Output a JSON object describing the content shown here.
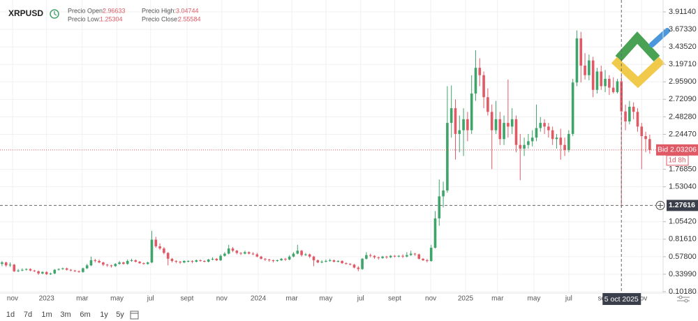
{
  "chart_data": {
    "type": "candlestick",
    "title": "XRPUSD",
    "ohlc_labels": {
      "open": "Precio Open:",
      "high": "Precio High:",
      "low": "Precio Low:",
      "close": "Precio Close:"
    },
    "ohlc": {
      "open": 2.96633,
      "high": 3.04744,
      "low": 1.25304,
      "close": 2.55584
    },
    "up_color": "#3fa46a",
    "down_color": "#e05a66",
    "grid": true,
    "xlim": [
      -0.5,
      163.3
    ],
    "xticks": [
      {
        "value": 2.6,
        "label": "nov"
      },
      {
        "value": 11,
        "label": "2023"
      },
      {
        "value": 19.8,
        "label": "mar"
      },
      {
        "value": 28.4,
        "label": "may"
      },
      {
        "value": 36.7,
        "label": "jul"
      },
      {
        "value": 45.7,
        "label": "sept"
      },
      {
        "value": 54.3,
        "label": "nov"
      },
      {
        "value": 63.3,
        "label": "2024"
      },
      {
        "value": 71.6,
        "label": "mar"
      },
      {
        "value": 80,
        "label": "may"
      },
      {
        "value": 88.6,
        "label": "jul"
      },
      {
        "value": 97,
        "label": "sept"
      },
      {
        "value": 105.9,
        "label": "nov"
      },
      {
        "value": 114.5,
        "label": "2025"
      },
      {
        "value": 122.4,
        "label": "mar"
      },
      {
        "value": 131.4,
        "label": "may"
      },
      {
        "value": 140,
        "label": "jul"
      },
      {
        "value": 148.8,
        "label": "sept"
      },
      {
        "value": 158,
        "label": "nov"
      }
    ],
    "ylim": [
      0.0828,
      4.0733
    ],
    "yticks": [
      {
        "value": 0.1018,
        "label": "0.10180"
      },
      {
        "value": 0.3399,
        "label": "0.33990"
      },
      {
        "value": 0.578,
        "label": "0.57800"
      },
      {
        "value": 0.8161,
        "label": "0.81610"
      },
      {
        "value": 1.0542,
        "label": "1.05420"
      },
      {
        "value": 1.5304,
        "label": "1.53040"
      },
      {
        "value": 1.7685,
        "label": "1.76850"
      },
      {
        "value": 2.2447,
        "label": "2.24470"
      },
      {
        "value": 2.4828,
        "label": "2.48280"
      },
      {
        "value": 2.7209,
        "label": "2.72090"
      },
      {
        "value": 2.959,
        "label": "2.95900"
      },
      {
        "value": 3.1971,
        "label": "3.19710"
      },
      {
        "value": 3.4352,
        "label": "3.43520"
      },
      {
        "value": 3.6733,
        "label": "3.67330"
      },
      {
        "value": 3.9114,
        "label": "3.91140"
      }
    ],
    "candles": [
      [
        0.48,
        0.52,
        0.45,
        0.5
      ],
      [
        0.5,
        0.51,
        0.44,
        0.46
      ],
      [
        0.46,
        0.5,
        0.44,
        0.47
      ],
      [
        0.47,
        0.48,
        0.37,
        0.38
      ],
      [
        0.38,
        0.41,
        0.37,
        0.39
      ],
      [
        0.39,
        0.42,
        0.38,
        0.4
      ],
      [
        0.4,
        0.42,
        0.39,
        0.41
      ],
      [
        0.41,
        0.42,
        0.38,
        0.39
      ],
      [
        0.39,
        0.4,
        0.37,
        0.38
      ],
      [
        0.38,
        0.39,
        0.33,
        0.35
      ],
      [
        0.35,
        0.38,
        0.34,
        0.37
      ],
      [
        0.37,
        0.38,
        0.33,
        0.34
      ],
      [
        0.34,
        0.36,
        0.33,
        0.35
      ],
      [
        0.35,
        0.41,
        0.34,
        0.4
      ],
      [
        0.4,
        0.42,
        0.39,
        0.41
      ],
      [
        0.41,
        0.43,
        0.4,
        0.42
      ],
      [
        0.42,
        0.43,
        0.39,
        0.4
      ],
      [
        0.4,
        0.41,
        0.38,
        0.39
      ],
      [
        0.39,
        0.4,
        0.37,
        0.38
      ],
      [
        0.38,
        0.39,
        0.36,
        0.37
      ],
      [
        0.37,
        0.43,
        0.36,
        0.42
      ],
      [
        0.42,
        0.48,
        0.41,
        0.46
      ],
      [
        0.46,
        0.58,
        0.45,
        0.53
      ],
      [
        0.53,
        0.55,
        0.5,
        0.52
      ],
      [
        0.52,
        0.54,
        0.49,
        0.5
      ],
      [
        0.5,
        0.51,
        0.45,
        0.47
      ],
      [
        0.47,
        0.48,
        0.44,
        0.46
      ],
      [
        0.46,
        0.47,
        0.43,
        0.45
      ],
      [
        0.45,
        0.49,
        0.44,
        0.48
      ],
      [
        0.48,
        0.52,
        0.47,
        0.5
      ],
      [
        0.5,
        0.51,
        0.47,
        0.48
      ],
      [
        0.48,
        0.54,
        0.47,
        0.52
      ],
      [
        0.52,
        0.55,
        0.51,
        0.53
      ],
      [
        0.53,
        0.54,
        0.5,
        0.51
      ],
      [
        0.51,
        0.52,
        0.48,
        0.49
      ],
      [
        0.49,
        0.5,
        0.47,
        0.48
      ],
      [
        0.48,
        0.51,
        0.47,
        0.5
      ],
      [
        0.5,
        0.93,
        0.49,
        0.81
      ],
      [
        0.81,
        0.85,
        0.7,
        0.72
      ],
      [
        0.72,
        0.76,
        0.67,
        0.69
      ],
      [
        0.69,
        0.71,
        0.61,
        0.63
      ],
      [
        0.63,
        0.64,
        0.46,
        0.55
      ],
      [
        0.55,
        0.56,
        0.5,
        0.52
      ],
      [
        0.52,
        0.53,
        0.49,
        0.51
      ],
      [
        0.51,
        0.52,
        0.48,
        0.5
      ],
      [
        0.5,
        0.53,
        0.49,
        0.52
      ],
      [
        0.52,
        0.53,
        0.5,
        0.52
      ],
      [
        0.52,
        0.53,
        0.49,
        0.51
      ],
      [
        0.51,
        0.54,
        0.5,
        0.53
      ],
      [
        0.53,
        0.54,
        0.51,
        0.52
      ],
      [
        0.52,
        0.53,
        0.5,
        0.51
      ],
      [
        0.51,
        0.55,
        0.5,
        0.54
      ],
      [
        0.54,
        0.57,
        0.53,
        0.55
      ],
      [
        0.55,
        0.56,
        0.52,
        0.53
      ],
      [
        0.53,
        0.61,
        0.52,
        0.59
      ],
      [
        0.59,
        0.64,
        0.58,
        0.62
      ],
      [
        0.62,
        0.74,
        0.61,
        0.69
      ],
      [
        0.69,
        0.71,
        0.64,
        0.66
      ],
      [
        0.66,
        0.67,
        0.61,
        0.63
      ],
      [
        0.63,
        0.64,
        0.6,
        0.62
      ],
      [
        0.62,
        0.66,
        0.61,
        0.64
      ],
      [
        0.64,
        0.65,
        0.61,
        0.62
      ],
      [
        0.62,
        0.64,
        0.6,
        0.61
      ],
      [
        0.61,
        0.63,
        0.57,
        0.58
      ],
      [
        0.58,
        0.59,
        0.54,
        0.55
      ],
      [
        0.55,
        0.56,
        0.52,
        0.54
      ],
      [
        0.54,
        0.55,
        0.51,
        0.53
      ],
      [
        0.53,
        0.54,
        0.5,
        0.52
      ],
      [
        0.52,
        0.54,
        0.51,
        0.53
      ],
      [
        0.53,
        0.56,
        0.52,
        0.55
      ],
      [
        0.55,
        0.56,
        0.52,
        0.54
      ],
      [
        0.54,
        0.6,
        0.53,
        0.58
      ],
      [
        0.58,
        0.64,
        0.57,
        0.62
      ],
      [
        0.62,
        0.74,
        0.61,
        0.66
      ],
      [
        0.66,
        0.67,
        0.58,
        0.6
      ],
      [
        0.6,
        0.63,
        0.59,
        0.61
      ],
      [
        0.61,
        0.62,
        0.56,
        0.58
      ],
      [
        0.58,
        0.59,
        0.45,
        0.53
      ],
      [
        0.53,
        0.54,
        0.49,
        0.5
      ],
      [
        0.5,
        0.53,
        0.49,
        0.51
      ],
      [
        0.51,
        0.54,
        0.5,
        0.52
      ],
      [
        0.52,
        0.55,
        0.51,
        0.53
      ],
      [
        0.53,
        0.54,
        0.5,
        0.51
      ],
      [
        0.51,
        0.53,
        0.5,
        0.52
      ],
      [
        0.52,
        0.53,
        0.48,
        0.49
      ],
      [
        0.49,
        0.5,
        0.47,
        0.48
      ],
      [
        0.48,
        0.49,
        0.46,
        0.47
      ],
      [
        0.47,
        0.48,
        0.42,
        0.43
      ],
      [
        0.43,
        0.45,
        0.38,
        0.41
      ],
      [
        0.41,
        0.56,
        0.4,
        0.55
      ],
      [
        0.55,
        0.64,
        0.54,
        0.6
      ],
      [
        0.6,
        0.62,
        0.57,
        0.59
      ],
      [
        0.59,
        0.6,
        0.55,
        0.57
      ],
      [
        0.57,
        0.58,
        0.54,
        0.56
      ],
      [
        0.56,
        0.59,
        0.55,
        0.58
      ],
      [
        0.58,
        0.59,
        0.55,
        0.57
      ],
      [
        0.57,
        0.6,
        0.56,
        0.59
      ],
      [
        0.59,
        0.6,
        0.57,
        0.58
      ],
      [
        0.58,
        0.6,
        0.57,
        0.59
      ],
      [
        0.59,
        0.61,
        0.56,
        0.58
      ],
      [
        0.58,
        0.64,
        0.57,
        0.6
      ],
      [
        0.6,
        0.66,
        0.59,
        0.62
      ],
      [
        0.62,
        0.63,
        0.59,
        0.61
      ],
      [
        0.61,
        0.62,
        0.54,
        0.55
      ],
      [
        0.55,
        0.56,
        0.52,
        0.53
      ],
      [
        0.53,
        0.55,
        0.5,
        0.52
      ],
      [
        0.52,
        0.74,
        0.51,
        0.7
      ],
      [
        0.7,
        1.2,
        0.69,
        1.1
      ],
      [
        1.1,
        1.63,
        1.0,
        1.4
      ],
      [
        1.4,
        1.6,
        1.25,
        1.48
      ],
      [
        1.48,
        2.9,
        1.45,
        2.4
      ],
      [
        2.4,
        2.91,
        2.2,
        2.6
      ],
      [
        2.6,
        2.72,
        1.9,
        2.25
      ],
      [
        2.25,
        2.5,
        2.0,
        2.3
      ],
      [
        2.3,
        2.6,
        1.95,
        2.45
      ],
      [
        2.45,
        2.55,
        2.15,
        2.3
      ],
      [
        2.3,
        3.05,
        2.25,
        2.8
      ],
      [
        2.8,
        3.39,
        2.7,
        3.15
      ],
      [
        3.15,
        3.28,
        2.9,
        3.05
      ],
      [
        3.05,
        3.1,
        2.6,
        2.75
      ],
      [
        2.75,
        2.87,
        2.5,
        2.55
      ],
      [
        2.55,
        2.65,
        1.77,
        2.3
      ],
      [
        2.3,
        2.7,
        2.25,
        2.45
      ],
      [
        2.45,
        2.55,
        2.1,
        2.18
      ],
      [
        2.18,
        2.5,
        2.1,
        2.4
      ],
      [
        2.4,
        2.99,
        2.2,
        2.35
      ],
      [
        2.35,
        2.6,
        2.25,
        2.45
      ],
      [
        2.45,
        2.5,
        2.0,
        2.1
      ],
      [
        2.1,
        2.25,
        1.62,
        2.05
      ],
      [
        2.05,
        2.2,
        1.95,
        2.1
      ],
      [
        2.1,
        2.25,
        2.05,
        2.15
      ],
      [
        2.15,
        2.3,
        2.08,
        2.2
      ],
      [
        2.2,
        2.65,
        2.15,
        2.33
      ],
      [
        2.33,
        2.48,
        2.28,
        2.4
      ],
      [
        2.4,
        2.45,
        2.25,
        2.35
      ],
      [
        2.35,
        2.4,
        2.2,
        2.3
      ],
      [
        2.3,
        2.35,
        2.1,
        2.18
      ],
      [
        2.18,
        2.25,
        2.05,
        2.2
      ],
      [
        2.2,
        2.32,
        1.9,
        2.1
      ],
      [
        2.1,
        2.2,
        1.95,
        2.03
      ],
      [
        2.03,
        2.3,
        2.0,
        2.25
      ],
      [
        2.25,
        3.0,
        2.22,
        2.95
      ],
      [
        2.95,
        3.66,
        2.9,
        3.55
      ],
      [
        3.55,
        3.64,
        2.95,
        3.18
      ],
      [
        3.18,
        3.35,
        2.99,
        3.05
      ],
      [
        3.05,
        3.33,
        2.98,
        3.25
      ],
      [
        3.25,
        3.3,
        2.75,
        2.85
      ],
      [
        2.85,
        3.15,
        2.8,
        3.1
      ],
      [
        3.1,
        3.18,
        2.85,
        2.9
      ],
      [
        2.9,
        3.12,
        2.82,
        3.0
      ],
      [
        3.0,
        3.05,
        2.78,
        2.88
      ],
      [
        2.88,
        3.02,
        2.8,
        2.82
      ],
      [
        2.82,
        3.0,
        2.8,
        2.96633
      ],
      [
        2.96633,
        3.04744,
        1.25304,
        2.55584
      ],
      [
        2.55584,
        2.65,
        2.3,
        2.42
      ],
      [
        2.42,
        2.7,
        2.38,
        2.62
      ],
      [
        2.62,
        2.68,
        2.45,
        2.55
      ],
      [
        2.55,
        2.6,
        2.28,
        2.35
      ],
      [
        2.35,
        2.4,
        1.77,
        2.22
      ],
      [
        2.22,
        2.28,
        2.0,
        2.18
      ],
      [
        2.18,
        2.24,
        1.98,
        2.03
      ]
    ],
    "bid": {
      "value": 2.03206,
      "label": "Bid 2.03206"
    },
    "countdown": "1d 8h",
    "crosshair_price": 1.27616,
    "crosshair_date": "5 oct 2025",
    "periods": [
      "1d",
      "7d",
      "1m",
      "3m",
      "6m",
      "1y",
      "5y"
    ]
  }
}
